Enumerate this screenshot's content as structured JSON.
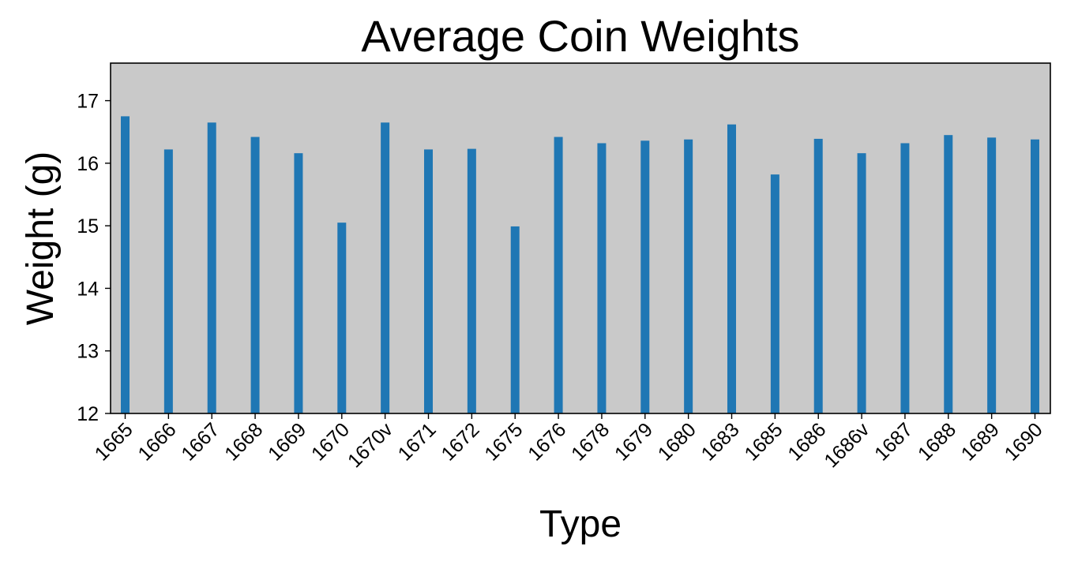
{
  "chart_data": {
    "type": "bar",
    "title": "Average Coin Weights",
    "xlabel": "Type",
    "ylabel": "Weight (g)",
    "categories": [
      "1665",
      "1666",
      "1667",
      "1668",
      "1669",
      "1670",
      "1670v",
      "1671",
      "1672",
      "1675",
      "1676",
      "1678",
      "1679",
      "1680",
      "1683",
      "1685",
      "1686",
      "1686v",
      "1687",
      "1688",
      "1689",
      "1690"
    ],
    "values": [
      16.75,
      16.22,
      16.65,
      16.42,
      16.16,
      15.05,
      16.65,
      16.22,
      16.23,
      14.99,
      16.42,
      16.32,
      16.36,
      16.38,
      16.62,
      15.82,
      16.39,
      16.16,
      16.32,
      16.45,
      16.41,
      16.38
    ],
    "ylim": [
      12,
      17.6
    ],
    "yticks": [
      12,
      13,
      14,
      15,
      16,
      17
    ],
    "grid": false,
    "colors": {
      "bar": "#1f77b4",
      "plot_background": "#c9c9c9",
      "axes": "#000000"
    }
  }
}
